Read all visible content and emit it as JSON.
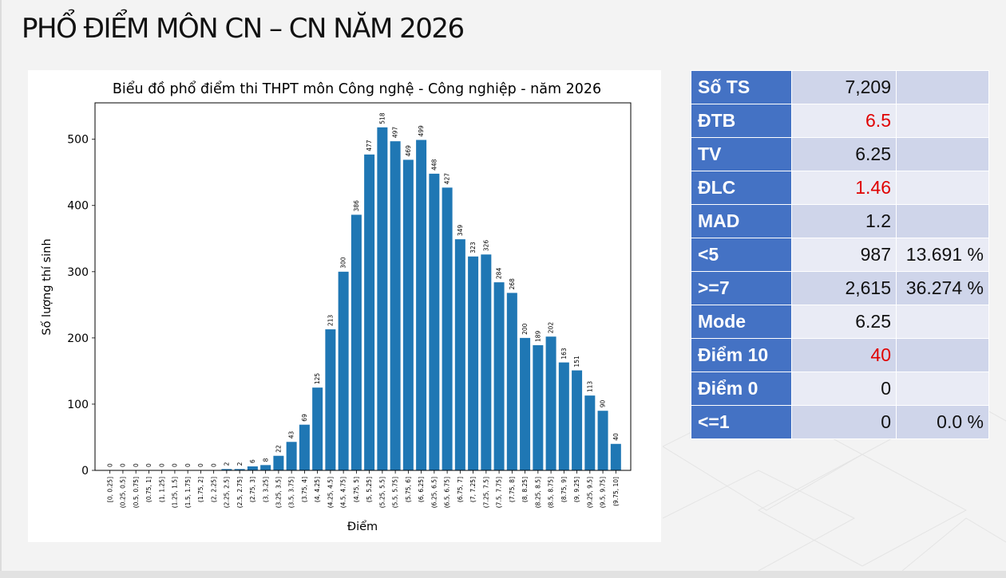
{
  "slide_title": "PHỔ ĐIỂM MÔN CN – CN NĂM 2026",
  "stats": [
    {
      "label": "Số TS",
      "value": "7,209",
      "pct": "",
      "value_color": "#111111"
    },
    {
      "label": "ĐTB",
      "value": "6.5",
      "pct": "",
      "value_color": "#e00000"
    },
    {
      "label": "TV",
      "value": "6.25",
      "pct": "",
      "value_color": "#111111"
    },
    {
      "label": "ĐLC",
      "value": "1.46",
      "pct": "",
      "value_color": "#e00000"
    },
    {
      "label": "MAD",
      "value": "1.2",
      "pct": "",
      "value_color": "#111111"
    },
    {
      "label": "<5",
      "value": "987",
      "pct": "13.691 %",
      "value_color": "#111111"
    },
    {
      "label": ">=7",
      "value": "2,615",
      "pct": "36.274 %",
      "value_color": "#111111"
    },
    {
      "label": "Mode",
      "value": "6.25",
      "pct": "",
      "value_color": "#111111"
    },
    {
      "label": "Điểm 10",
      "value": "40",
      "pct": "",
      "value_color": "#e00000"
    },
    {
      "label": "Điểm 0",
      "value": "0",
      "pct": "",
      "value_color": "#111111"
    },
    {
      "label": "<=1",
      "value": "0",
      "pct": "0.0 %",
      "value_color": "#111111"
    }
  ],
  "chart_data": {
    "type": "bar",
    "title": "Biểu đồ phổ điểm thi THPT môn Công nghệ - Công nghiệp - năm 2026",
    "xlabel": "Điểm",
    "ylabel": "Số lượng thí sinh",
    "bar_color": "#1f77b4",
    "ylim": [
      0,
      555
    ],
    "yticks": [
      0,
      100,
      200,
      300,
      400,
      500
    ],
    "grid": false,
    "categories": [
      "[0, 0.25]",
      "(0.25, 0.5]",
      "(0.5, 0.75]",
      "(0.75, 1]",
      "(1, 1.25]",
      "(1.25, 1.5]",
      "(1.5, 1.75]",
      "(1.75, 2]",
      "(2, 2.25]",
      "(2.25, 2.5]",
      "(2.5, 2.75]",
      "(2.75, 3]",
      "(3, 3.25]",
      "(3.25, 3.5]",
      "(3.5, 3.75]",
      "(3.75, 4]",
      "(4, 4.25]",
      "(4.25, 4.5]",
      "(4.5, 4.75]",
      "(4.75, 5]",
      "(5, 5.25]",
      "(5.25, 5.5]",
      "(5.5, 5.75]",
      "(5.75, 6]",
      "(6, 6.25]",
      "(6.25, 6.5]",
      "(6.5, 6.75]",
      "(6.75, 7]",
      "(7, 7.25]",
      "(7.25, 7.5]",
      "(7.5, 7.75]",
      "(7.75, 8]",
      "(8, 8.25]",
      "(8.25, 8.5]",
      "(8.5, 8.75]",
      "(8.75, 9]",
      "(9, 9.25]",
      "(9.25, 9.5]",
      "(9.5, 9.75]",
      "(9.75, 10]"
    ],
    "values": [
      0,
      0,
      0,
      0,
      0,
      0,
      0,
      0,
      0,
      2,
      2,
      6,
      8,
      22,
      43,
      69,
      125,
      213,
      300,
      386,
      477,
      518,
      497,
      469,
      499,
      448,
      427,
      349,
      323,
      326,
      284,
      268,
      200,
      189,
      202,
      163,
      151,
      113,
      90,
      40
    ]
  }
}
